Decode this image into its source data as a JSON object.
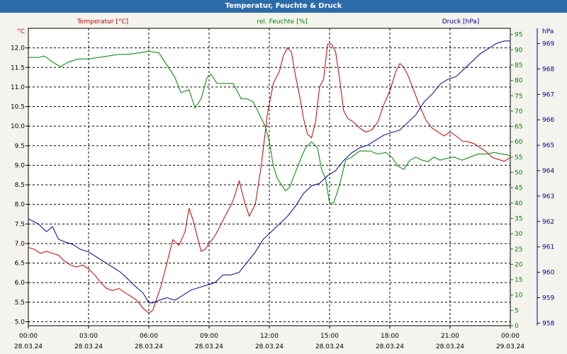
{
  "window": {
    "title": "Temperatur, Feuchte & Druck"
  },
  "chart_data": {
    "type": "line",
    "title": "Temperatur, Feuchte & Druck",
    "x_range_hours": [
      0,
      24
    ],
    "x_ticks": [
      {
        "h": 0,
        "time": "00:00",
        "date": "28.03.24"
      },
      {
        "h": 3,
        "time": "03:00",
        "date": "28.03.24"
      },
      {
        "h": 6,
        "time": "06:00",
        "date": "28.03.24"
      },
      {
        "h": 9,
        "time": "09:00",
        "date": "28.03.24"
      },
      {
        "h": 12,
        "time": "12:00",
        "date": "28.03.24"
      },
      {
        "h": 15,
        "time": "15:00",
        "date": "28.03.24"
      },
      {
        "h": 18,
        "time": "18:00",
        "date": "28.03.24"
      },
      {
        "h": 21,
        "time": "21:00",
        "date": "28.03.24"
      },
      {
        "h": 24,
        "time": "00:00",
        "date": "29.03.24"
      }
    ],
    "axes": {
      "temperature": {
        "label": "Temperatur [°C]",
        "unit": "°C",
        "color": "#c00000",
        "range": [
          4.9,
          12.5
        ],
        "ticks": [
          "12.0",
          "11.5",
          "11.0",
          "10.5",
          "10.0",
          "9.5",
          "9.0",
          "8.5",
          "8.0",
          "7.5",
          "7.0",
          "6.5",
          "6.0",
          "5.5",
          "5.0"
        ]
      },
      "humidity": {
        "label": "rel. Feuchte [%]",
        "unit": "%",
        "color": "#008000",
        "range": [
          0,
          97
        ],
        "ticks": [
          "95",
          "90",
          "85",
          "80",
          "75",
          "70",
          "65",
          "60",
          "55",
          "50",
          "45",
          "40",
          "35",
          "30",
          "25",
          "20",
          "15",
          "10",
          "5",
          "0"
        ]
      },
      "pressure": {
        "label": "Druck [hPa]",
        "unit": "hPa",
        "color": "#00008b",
        "range": [
          957.9,
          969.6
        ],
        "ticks": [
          "969",
          "968",
          "967",
          "966",
          "965",
          "964",
          "963",
          "962",
          "961",
          "960",
          "959",
          "958"
        ]
      }
    },
    "series": [
      {
        "name": "Temperatur",
        "axis": "temperature",
        "color": "#c00000",
        "points": [
          [
            0,
            6.9
          ],
          [
            0.3,
            6.85
          ],
          [
            0.6,
            6.75
          ],
          [
            0.9,
            6.8
          ],
          [
            1.2,
            6.75
          ],
          [
            1.5,
            6.7
          ],
          [
            1.8,
            6.55
          ],
          [
            2.1,
            6.45
          ],
          [
            2.4,
            6.4
          ],
          [
            2.7,
            6.45
          ],
          [
            3,
            6.35
          ],
          [
            3.3,
            6.2
          ],
          [
            3.6,
            6.0
          ],
          [
            3.9,
            5.85
          ],
          [
            4.2,
            5.8
          ],
          [
            4.5,
            5.85
          ],
          [
            4.8,
            5.75
          ],
          [
            5.1,
            5.65
          ],
          [
            5.4,
            5.55
          ],
          [
            5.7,
            5.35
          ],
          [
            6,
            5.22
          ],
          [
            6.2,
            5.3
          ],
          [
            6.4,
            5.6
          ],
          [
            6.6,
            5.9
          ],
          [
            6.8,
            6.3
          ],
          [
            7.0,
            6.7
          ],
          [
            7.2,
            7.1
          ],
          [
            7.5,
            6.95
          ],
          [
            7.8,
            7.3
          ],
          [
            8.0,
            7.9
          ],
          [
            8.2,
            7.6
          ],
          [
            8.4,
            7.2
          ],
          [
            8.6,
            6.8
          ],
          [
            8.8,
            6.85
          ],
          [
            9.0,
            7.0
          ],
          [
            9.3,
            7.2
          ],
          [
            9.6,
            7.5
          ],
          [
            9.9,
            7.8
          ],
          [
            10.2,
            8.1
          ],
          [
            10.5,
            8.6
          ],
          [
            10.8,
            8.0
          ],
          [
            11.0,
            7.7
          ],
          [
            11.3,
            8.0
          ],
          [
            11.6,
            9.0
          ],
          [
            11.9,
            10.3
          ],
          [
            12.2,
            11.1
          ],
          [
            12.5,
            11.4
          ],
          [
            12.7,
            11.8
          ],
          [
            12.9,
            12.0
          ],
          [
            13.1,
            11.9
          ],
          [
            13.3,
            11.3
          ],
          [
            13.5,
            10.8
          ],
          [
            13.7,
            10.2
          ],
          [
            13.9,
            9.8
          ],
          [
            14.1,
            9.7
          ],
          [
            14.3,
            10.1
          ],
          [
            14.5,
            11.0
          ],
          [
            14.7,
            11.2
          ],
          [
            14.9,
            12.1
          ],
          [
            15.1,
            12.1
          ],
          [
            15.3,
            11.9
          ],
          [
            15.5,
            11.2
          ],
          [
            15.7,
            10.4
          ],
          [
            15.9,
            10.2
          ],
          [
            16.2,
            10.1
          ],
          [
            16.5,
            9.95
          ],
          [
            16.8,
            9.85
          ],
          [
            17.1,
            9.9
          ],
          [
            17.4,
            10.1
          ],
          [
            17.7,
            10.55
          ],
          [
            18.0,
            10.9
          ],
          [
            18.3,
            11.4
          ],
          [
            18.5,
            11.6
          ],
          [
            18.7,
            11.5
          ],
          [
            18.9,
            11.3
          ],
          [
            19.2,
            10.9
          ],
          [
            19.5,
            10.5
          ],
          [
            19.8,
            10.15
          ],
          [
            20.1,
            9.95
          ],
          [
            20.4,
            9.85
          ],
          [
            20.7,
            9.75
          ],
          [
            21.0,
            9.85
          ],
          [
            21.3,
            9.75
          ],
          [
            21.6,
            9.62
          ],
          [
            21.9,
            9.6
          ],
          [
            22.2,
            9.55
          ],
          [
            22.5,
            9.45
          ],
          [
            22.8,
            9.35
          ],
          [
            23.1,
            9.2
          ],
          [
            23.4,
            9.15
          ],
          [
            23.7,
            9.1
          ],
          [
            24,
            9.2
          ]
        ]
      },
      {
        "name": "rel. Feuchte",
        "axis": "humidity",
        "color": "#008000",
        "points": [
          [
            0,
            87.5
          ],
          [
            0.5,
            87.5
          ],
          [
            0.8,
            88
          ],
          [
            1.2,
            86
          ],
          [
            1.6,
            84.5
          ],
          [
            2.0,
            86
          ],
          [
            2.5,
            87
          ],
          [
            3,
            87
          ],
          [
            3.5,
            87.5
          ],
          [
            4.0,
            88
          ],
          [
            4.5,
            88.5
          ],
          [
            5.0,
            88.5
          ],
          [
            5.5,
            89
          ],
          [
            6,
            89.5
          ],
          [
            6.5,
            89
          ],
          [
            7.0,
            84
          ],
          [
            7.3,
            81
          ],
          [
            7.6,
            76
          ],
          [
            8.0,
            77
          ],
          [
            8.3,
            71
          ],
          [
            8.6,
            74
          ],
          [
            8.9,
            81
          ],
          [
            9.1,
            82
          ],
          [
            9.4,
            79
          ],
          [
            9.8,
            79
          ],
          [
            10.2,
            79
          ],
          [
            10.6,
            74
          ],
          [
            10.9,
            74
          ],
          [
            11.2,
            73
          ],
          [
            11.5,
            69
          ],
          [
            11.8,
            65
          ],
          [
            12.0,
            60
          ],
          [
            12.2,
            52
          ],
          [
            12.4,
            48
          ],
          [
            12.6,
            46
          ],
          [
            12.8,
            44
          ],
          [
            13.0,
            45
          ],
          [
            13.3,
            50
          ],
          [
            13.6,
            55
          ],
          [
            13.8,
            58
          ],
          [
            14.1,
            60
          ],
          [
            14.4,
            58
          ],
          [
            14.6,
            51
          ],
          [
            14.8,
            48
          ],
          [
            15.0,
            40
          ],
          [
            15.2,
            40
          ],
          [
            15.5,
            46
          ],
          [
            15.8,
            54
          ],
          [
            16.1,
            55
          ],
          [
            16.5,
            57
          ],
          [
            17.0,
            57
          ],
          [
            17.4,
            56
          ],
          [
            17.8,
            56.5
          ],
          [
            18.1,
            55
          ],
          [
            18.4,
            52
          ],
          [
            18.7,
            51
          ],
          [
            19.0,
            54
          ],
          [
            19.3,
            55
          ],
          [
            19.6,
            54
          ],
          [
            19.9,
            53.5
          ],
          [
            20.2,
            55
          ],
          [
            20.5,
            54
          ],
          [
            20.8,
            54.5
          ],
          [
            21.2,
            55
          ],
          [
            21.6,
            54
          ],
          [
            22.0,
            55
          ],
          [
            22.4,
            56
          ],
          [
            22.8,
            56
          ],
          [
            23.2,
            56.5
          ],
          [
            23.6,
            56
          ],
          [
            24,
            55.5
          ]
        ]
      },
      {
        "name": "Druck",
        "axis": "pressure",
        "color": "#00008b",
        "points": [
          [
            0,
            962.1
          ],
          [
            0.5,
            961.9
          ],
          [
            0.9,
            961.6
          ],
          [
            1.2,
            961.8
          ],
          [
            1.5,
            961.3
          ],
          [
            1.8,
            961.2
          ],
          [
            2.2,
            961.1
          ],
          [
            2.6,
            960.9
          ],
          [
            3.0,
            960.8
          ],
          [
            3.4,
            960.6
          ],
          [
            3.8,
            960.4
          ],
          [
            4.2,
            960.2
          ],
          [
            4.6,
            960.0
          ],
          [
            5.0,
            959.7
          ],
          [
            5.4,
            959.4
          ],
          [
            5.7,
            959.2
          ],
          [
            6.0,
            958.8
          ],
          [
            6.2,
            958.8
          ],
          [
            6.5,
            958.9
          ],
          [
            6.9,
            959.0
          ],
          [
            7.3,
            958.9
          ],
          [
            7.7,
            959.1
          ],
          [
            8.1,
            959.3
          ],
          [
            8.5,
            959.4
          ],
          [
            8.9,
            959.5
          ],
          [
            9.3,
            959.6
          ],
          [
            9.7,
            959.9
          ],
          [
            10.1,
            959.9
          ],
          [
            10.5,
            960.0
          ],
          [
            10.9,
            960.4
          ],
          [
            11.3,
            960.8
          ],
          [
            11.7,
            961.3
          ],
          [
            12.1,
            961.6
          ],
          [
            12.5,
            961.9
          ],
          [
            12.9,
            962.2
          ],
          [
            13.3,
            962.6
          ],
          [
            13.7,
            963.1
          ],
          [
            14.1,
            963.4
          ],
          [
            14.5,
            963.5
          ],
          [
            14.9,
            963.8
          ],
          [
            15.3,
            964.0
          ],
          [
            15.7,
            964.4
          ],
          [
            16.1,
            964.7
          ],
          [
            16.5,
            964.9
          ],
          [
            16.9,
            965.0
          ],
          [
            17.3,
            965.2
          ],
          [
            17.7,
            965.4
          ],
          [
            18.1,
            965.5
          ],
          [
            18.5,
            965.6
          ],
          [
            18.9,
            965.9
          ],
          [
            19.3,
            966.2
          ],
          [
            19.7,
            966.7
          ],
          [
            20.1,
            967.0
          ],
          [
            20.5,
            967.4
          ],
          [
            20.9,
            967.6
          ],
          [
            21.3,
            967.7
          ],
          [
            21.7,
            968.0
          ],
          [
            22.1,
            968.3
          ],
          [
            22.5,
            968.6
          ],
          [
            22.9,
            968.8
          ],
          [
            23.3,
            969.0
          ],
          [
            23.7,
            969.1
          ],
          [
            24,
            969.1
          ]
        ]
      }
    ]
  }
}
